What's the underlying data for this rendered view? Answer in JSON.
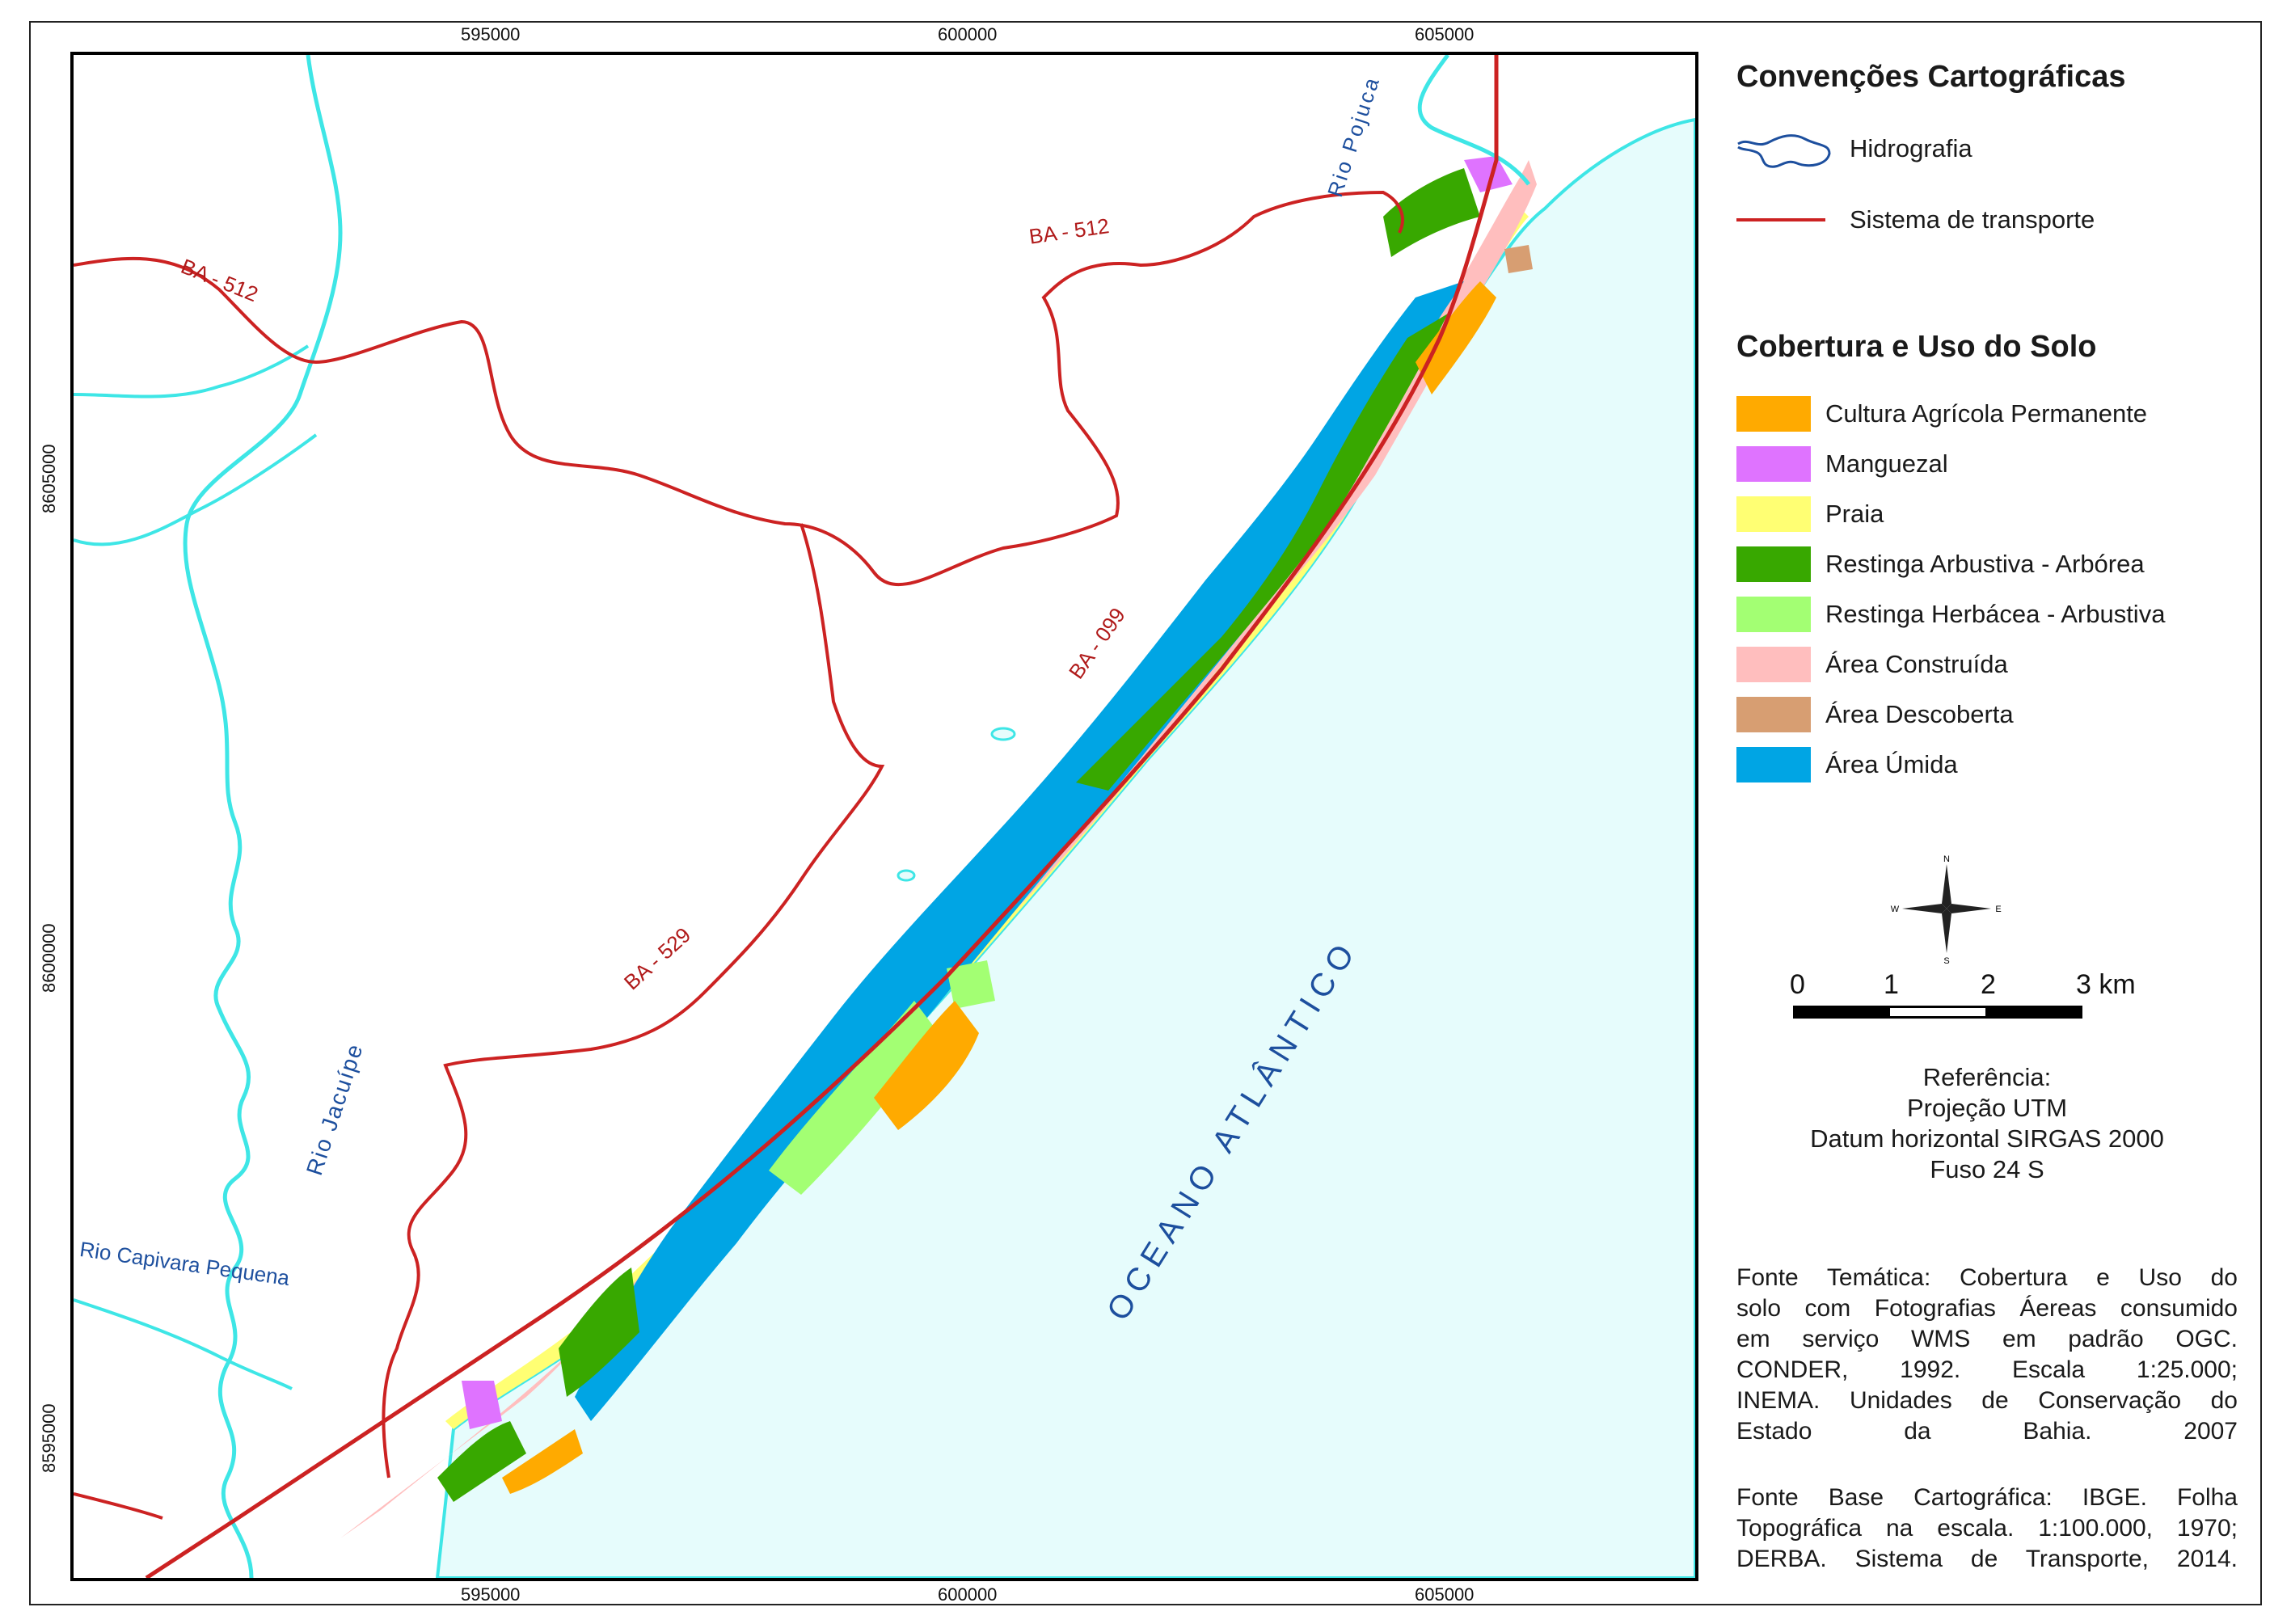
{
  "map": {
    "x_ticks": [
      "595000",
      "600000",
      "605000"
    ],
    "y_ticks": [
      "8605000",
      "8600000",
      "8595000"
    ],
    "labels": {
      "road_ba512_left": "BA - 512",
      "road_ba512_right": "BA - 512",
      "road_ba099": "BA - 099",
      "road_ba529": "BA - 529",
      "river_pojuca": "Rio Pojuca",
      "river_jacuipe": "Rio Jacuípe",
      "river_capivara": "Rio Capivara Pequena",
      "ocean": "OCEANO ATLÂNTICO"
    },
    "colors": {
      "ocean": "#e6fcfc",
      "water_line": "#3ee6e6",
      "road": "#cc2222",
      "label_blue": "#1d4f9e"
    }
  },
  "legend": {
    "conventions_title": "Convenções Cartográficas",
    "conventions": [
      {
        "label": "Hidrografia",
        "icon": "water-body-icon"
      },
      {
        "label": "Sistema de transporte",
        "icon": "road-line-icon"
      }
    ],
    "landcover_title": "Cobertura e Uso do Solo",
    "landcover": [
      {
        "label": "Cultura Agrícola Permanente",
        "color": "#ffaa00"
      },
      {
        "label": "Manguezal",
        "color": "#df73ff"
      },
      {
        "label": "Praia",
        "color": "#ffff73"
      },
      {
        "label": "Restinga Arbustiva - Arbórea",
        "color": "#38a800"
      },
      {
        "label": "Restinga Herbácea - Arbustiva",
        "color": "#a3ff73"
      },
      {
        "label": "Área Construída",
        "color": "#ffbebe"
      },
      {
        "label": "Área Descoberta",
        "color": "#d79e72"
      },
      {
        "label": "Área Úmida",
        "color": "#00a5e4"
      }
    ],
    "north_arrow": {
      "n": "N",
      "s": "S",
      "e": "E",
      "w": "W"
    },
    "scale_bar": {
      "labels": [
        "0",
        "1",
        "2",
        "3 km"
      ]
    },
    "reference": [
      "Referência:",
      "Projeção UTM",
      "Datum horizontal SIRGAS 2000",
      "Fuso 24 S"
    ],
    "source_thematic": [
      "Fonte Temática: Cobertura e Uso do",
      "solo com Fotografias Áereas consumido",
      "em serviço WMS em padrão OGC.",
      "CONDER, 1992. Escala 1:25.000;",
      "INEMA. Unidades de Conservação do",
      "Estado da Bahia. 2007"
    ],
    "source_base": [
      "Fonte Base Cartográfica: IBGE. Folha",
      "Topográfica na escala. 1:100.000, 1970;",
      "DERBA. Sistema de Transporte, 2014."
    ]
  }
}
